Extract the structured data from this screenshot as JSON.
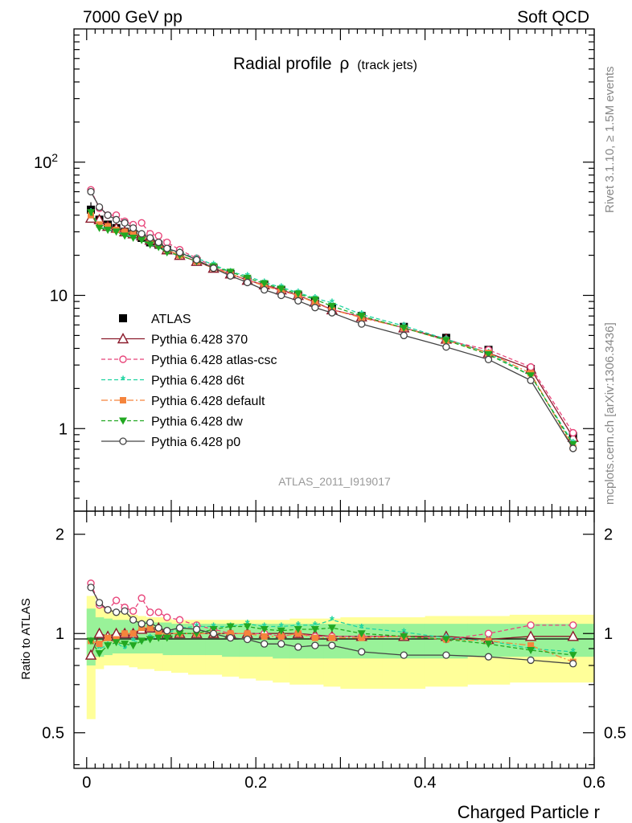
{
  "header": {
    "left": "7000 GeV pp",
    "right": "Soft QCD",
    "title_main": "Radial profile",
    "title_symbol": "ρ",
    "title_sub": "(track jets)",
    "analysis_id": "ATLAS_2011_I919017",
    "side_top": "Rivet 3.1.10, ≥ 1.5M events",
    "side_bottom": "mcplots.cern.ch [arXiv:1306.3436]"
  },
  "colors": {
    "atlas": "#000000",
    "p370": "#8b1a2b",
    "atlascsc": "#e8457a",
    "d6t": "#1fd4a0",
    "default": "#f5843c",
    "dw": "#22a822",
    "p0": "#444444",
    "band_yellow": "#ffff99",
    "band_green": "#99f299"
  },
  "chart_data": [
    {
      "type": "line",
      "panel": "main",
      "ylabel": "",
      "xlim": [
        -0.015,
        0.6
      ],
      "ylim": [
        0.24,
        1000
      ],
      "yscale": "log",
      "ytick_labels": [
        "1",
        "10",
        "10^2"
      ],
      "x": [
        0.005,
        0.015,
        0.025,
        0.035,
        0.045,
        0.055,
        0.065,
        0.075,
        0.085,
        0.095,
        0.11,
        0.13,
        0.15,
        0.17,
        0.19,
        0.21,
        0.23,
        0.25,
        0.27,
        0.29,
        0.325,
        0.375,
        0.425,
        0.475,
        0.525,
        0.575
      ],
      "legend_placement": "left-middle",
      "series": [
        {
          "name": "ATLAS",
          "key": "atlas",
          "values": [
            44,
            37,
            34,
            32,
            30,
            29,
            27,
            25,
            24,
            22,
            20,
            18,
            16,
            14.5,
            13,
            12,
            11,
            10,
            9,
            8,
            7,
            5.8,
            4.8,
            3.9,
            2.8,
            0.88
          ],
          "err": [
            6,
            3,
            2,
            2,
            1.5,
            1.5,
            1.2,
            1,
            1,
            1,
            0.8,
            0.7,
            0.6,
            0.5,
            0.5,
            0.4,
            0.4,
            0.4,
            0.3,
            0.3,
            0.3,
            0.2,
            0.2,
            0.15,
            0.12,
            0.05
          ]
        },
        {
          "name": "Pythia 6.428 370",
          "key": "p370",
          "values": [
            38,
            37,
            33,
            32,
            30,
            29,
            28,
            26,
            25,
            22,
            20,
            18,
            16,
            14.5,
            13,
            12,
            11,
            10,
            8.9,
            7.8,
            6.9,
            5.7,
            4.7,
            3.7,
            2.8,
            0.86
          ]
        },
        {
          "name": "Pythia 6.428 atlas-csc",
          "key": "atlascsc",
          "values": [
            62,
            45,
            40,
            40,
            36,
            34,
            35,
            29,
            28,
            25,
            22,
            19,
            16.5,
            14.5,
            13,
            12,
            10.8,
            10,
            8.8,
            7.8,
            6.9,
            5.7,
            4.6,
            3.9,
            2.9,
            0.93
          ]
        },
        {
          "name": "Pythia 6.428 d6t",
          "key": "d6t",
          "values": [
            42,
            33,
            31,
            30,
            29,
            27,
            26,
            24,
            23,
            22,
            21,
            19,
            17,
            15,
            14,
            12.5,
            11.5,
            10.5,
            9.5,
            8.8,
            7.2,
            5.9,
            4.7,
            3.7,
            2.5,
            0.78
          ]
        },
        {
          "name": "Pythia 6.428 default",
          "key": "default",
          "values": [
            40,
            34,
            33,
            31,
            30,
            29,
            28,
            26,
            24,
            22,
            20,
            18,
            16,
            14.5,
            13,
            11.8,
            10.8,
            10,
            8.8,
            7.8,
            6.8,
            5.7,
            4.6,
            3.7,
            2.6,
            0.72
          ]
        },
        {
          "name": "Pythia 6.428 dw",
          "key": "dw",
          "values": [
            42,
            32,
            31,
            30,
            28,
            27,
            26,
            24,
            23,
            21,
            20,
            18,
            16.5,
            15,
            13.5,
            12.3,
            11.2,
            10.3,
            9.3,
            8.3,
            7,
            5.7,
            4.6,
            3.6,
            2.5,
            0.76
          ]
        },
        {
          "name": "Pythia 6.428 p0",
          "key": "p0",
          "values": [
            60,
            46,
            40,
            37,
            35,
            32,
            29,
            27,
            25,
            22.5,
            21,
            18.5,
            16,
            14,
            12.5,
            11,
            10,
            9.1,
            8.1,
            7.4,
            6.1,
            5,
            4.1,
            3.3,
            2.3,
            0.71
          ]
        }
      ]
    },
    {
      "type": "line",
      "panel": "ratio",
      "xlabel": "Charged Particle r",
      "ylabel": "Ratio to ATLAS",
      "xlim": [
        -0.015,
        0.6
      ],
      "ylim": [
        0.39,
        2.35
      ],
      "yscale": "log",
      "ytick_labels": [
        "0.5",
        "1",
        "2"
      ],
      "xtick_labels": [
        "0",
        "0.2",
        "0.4",
        "0.6"
      ],
      "x": [
        0.005,
        0.015,
        0.025,
        0.035,
        0.045,
        0.055,
        0.065,
        0.075,
        0.085,
        0.095,
        0.11,
        0.13,
        0.15,
        0.17,
        0.19,
        0.21,
        0.23,
        0.25,
        0.27,
        0.29,
        0.325,
        0.375,
        0.425,
        0.475,
        0.525,
        0.575
      ],
      "band_edges": [
        0,
        0.01,
        0.02,
        0.03,
        0.04,
        0.05,
        0.06,
        0.07,
        0.08,
        0.09,
        0.1,
        0.12,
        0.14,
        0.16,
        0.18,
        0.2,
        0.22,
        0.24,
        0.26,
        0.28,
        0.3,
        0.35,
        0.4,
        0.45,
        0.5,
        0.55,
        0.6
      ],
      "band_yellow": [
        [
          0.55,
          1.3
        ],
        [
          0.78,
          1.2
        ],
        [
          0.8,
          1.18
        ],
        [
          0.8,
          1.16
        ],
        [
          0.8,
          1.15
        ],
        [
          0.79,
          1.14
        ],
        [
          0.78,
          1.13
        ],
        [
          0.78,
          1.12
        ],
        [
          0.77,
          1.12
        ],
        [
          0.77,
          1.11
        ],
        [
          0.76,
          1.1
        ],
        [
          0.75,
          1.1
        ],
        [
          0.75,
          1.1
        ],
        [
          0.74,
          1.1
        ],
        [
          0.73,
          1.1
        ],
        [
          0.72,
          1.1
        ],
        [
          0.71,
          1.1
        ],
        [
          0.7,
          1.11
        ],
        [
          0.7,
          1.11
        ],
        [
          0.69,
          1.11
        ],
        [
          0.68,
          1.12
        ],
        [
          0.68,
          1.12
        ],
        [
          0.69,
          1.13
        ],
        [
          0.7,
          1.13
        ],
        [
          0.71,
          1.14
        ],
        [
          0.71,
          1.14
        ]
      ],
      "band_green": [
        [
          0.8,
          1.19
        ],
        [
          0.85,
          1.12
        ],
        [
          0.86,
          1.11
        ],
        [
          0.87,
          1.1
        ],
        [
          0.87,
          1.1
        ],
        [
          0.87,
          1.09
        ],
        [
          0.87,
          1.09
        ],
        [
          0.87,
          1.08
        ],
        [
          0.87,
          1.08
        ],
        [
          0.86,
          1.08
        ],
        [
          0.86,
          1.07
        ],
        [
          0.86,
          1.07
        ],
        [
          0.86,
          1.07
        ],
        [
          0.85,
          1.07
        ],
        [
          0.85,
          1.07
        ],
        [
          0.85,
          1.07
        ],
        [
          0.84,
          1.07
        ],
        [
          0.84,
          1.07
        ],
        [
          0.84,
          1.07
        ],
        [
          0.84,
          1.07
        ],
        [
          0.84,
          1.07
        ],
        [
          0.84,
          1.07
        ],
        [
          0.84,
          1.07
        ],
        [
          0.85,
          1.07
        ],
        [
          0.85,
          1.07
        ],
        [
          0.85,
          1.07
        ]
      ],
      "series": [
        {
          "name": "ATLAS",
          "key": "atlas",
          "values": [
            1,
            1,
            1,
            1,
            1,
            1,
            1,
            1,
            1,
            1,
            1,
            1,
            1,
            1,
            1,
            1,
            1,
            1,
            1,
            1,
            1,
            1,
            1,
            1,
            1,
            1
          ]
        },
        {
          "name": "Pythia 6.428 370",
          "key": "p370",
          "values": [
            0.86,
            1.0,
            0.98,
            1.0,
            1.0,
            1.0,
            1.03,
            1.04,
            1.04,
            1.0,
            1.0,
            1.0,
            1.0,
            1.0,
            1.0,
            1.0,
            1.0,
            1.0,
            0.99,
            0.98,
            0.98,
            0.98,
            0.98,
            0.96,
            0.98,
            0.98
          ]
        },
        {
          "name": "Pythia 6.428 atlas-csc",
          "key": "atlascsc",
          "values": [
            1.42,
            1.22,
            1.18,
            1.26,
            1.2,
            1.17,
            1.28,
            1.16,
            1.16,
            1.12,
            1.1,
            1.06,
            1.03,
            1.0,
            1.0,
            1.0,
            0.98,
            1.0,
            0.98,
            0.98,
            0.98,
            0.98,
            0.96,
            1.0,
            1.06,
            1.06
          ]
        },
        {
          "name": "Pythia 6.428 d6t",
          "key": "d6t",
          "values": [
            0.95,
            0.9,
            0.92,
            0.94,
            0.9,
            0.95,
            0.94,
            0.97,
            0.98,
            1.0,
            1.04,
            1.05,
            1.05,
            1.05,
            1.07,
            1.05,
            1.05,
            1.06,
            1.06,
            1.1,
            1.04,
            1.01,
            0.97,
            0.95,
            0.9,
            0.88
          ]
        },
        {
          "name": "Pythia 6.428 default",
          "key": "default",
          "values": [
            0.95,
            0.93,
            0.97,
            0.96,
            1.0,
            1.0,
            1.04,
            1.04,
            1.0,
            1.0,
            1.0,
            1.0,
            1.0,
            1.0,
            1.0,
            0.98,
            0.98,
            1.0,
            0.97,
            0.97,
            0.97,
            0.98,
            0.96,
            0.95,
            0.92,
            0.82
          ]
        },
        {
          "name": "Pythia 6.428 dw",
          "key": "dw",
          "values": [
            0.95,
            0.87,
            0.92,
            0.94,
            0.93,
            0.92,
            0.95,
            0.96,
            0.97,
            0.97,
            1.0,
            1.0,
            1.03,
            1.05,
            1.05,
            1.03,
            1.02,
            1.03,
            1.03,
            1.04,
            1.0,
            0.98,
            0.96,
            0.93,
            0.89,
            0.86
          ]
        },
        {
          "name": "Pythia 6.428 p0",
          "key": "p0",
          "values": [
            1.38,
            1.24,
            1.18,
            1.16,
            1.17,
            1.1,
            1.07,
            1.08,
            1.04,
            1.02,
            1.04,
            1.03,
            1.0,
            0.97,
            0.96,
            0.93,
            0.93,
            0.91,
            0.92,
            0.92,
            0.88,
            0.86,
            0.86,
            0.85,
            0.83,
            0.81
          ]
        }
      ]
    }
  ]
}
